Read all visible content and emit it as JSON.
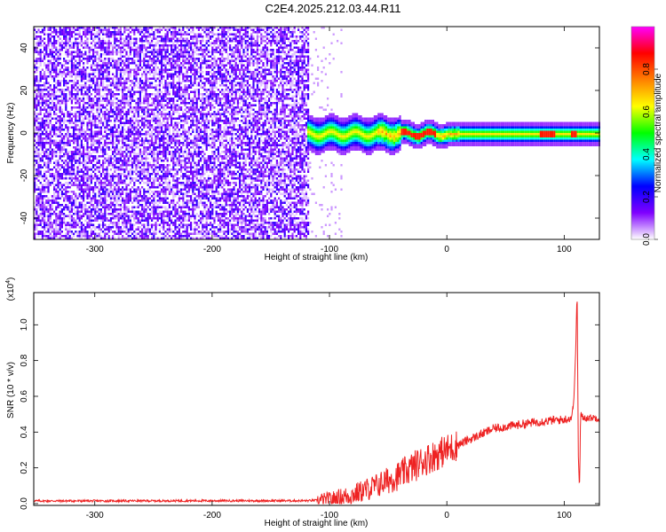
{
  "title": "C2E4.2025.212.03.44.R11",
  "chart_data": [
    {
      "type": "heatmap",
      "name": "spectrogram",
      "xlabel": "Height of straight line (km)",
      "ylabel": "Frequency (Hz)",
      "xlim": [
        -352,
        130
      ],
      "ylim": [
        -50,
        50
      ],
      "xticks": [
        -300,
        -200,
        -100,
        0,
        100
      ],
      "yticks": [
        -40,
        -20,
        0,
        20,
        40
      ],
      "colorbar": {
        "label": "Normalized spectral amplitude",
        "range": [
          0,
          1
        ],
        "ticks": [
          "0.0",
          "0.2",
          "0.4",
          "0.6",
          "0.8"
        ],
        "colors": [
          "#ffffff",
          "#7f00ff",
          "#0000ff",
          "#00ffff",
          "#00ff00",
          "#ffff00",
          "#ff8000",
          "#ff0000",
          "#ff00ff"
        ]
      },
      "features": {
        "noise_region_x": [
          -352,
          -118
        ],
        "noise_amplitude": 0.15,
        "sparse_region_x": [
          -118,
          -90
        ],
        "signal_start_x": -120,
        "signal_center_freq_hz": 0,
        "signal_band_halfwidth_hz": 5
      }
    },
    {
      "type": "line",
      "name": "snr",
      "xlabel": "Height of straight line (km)",
      "ylabel": "SNR (10 * v/v)",
      "y_multiplier": "(x10",
      "y_multiplier_exp": "4",
      "xlim": [
        -352,
        130
      ],
      "ylim": [
        -0.01,
        1.18
      ],
      "xticks": [
        -300,
        -200,
        -100,
        0,
        100
      ],
      "yticks": [
        "0.0",
        "0.2",
        "0.4",
        "0.6",
        "0.8",
        "1.0"
      ],
      "color": "#ee2222",
      "series_points": [
        [
          -352,
          0.015
        ],
        [
          -300,
          0.015
        ],
        [
          -200,
          0.016
        ],
        [
          -120,
          0.016
        ],
        [
          -100,
          0.02
        ],
        [
          -80,
          0.05
        ],
        [
          -60,
          0.1
        ],
        [
          -40,
          0.16
        ],
        [
          -20,
          0.24
        ],
        [
          0,
          0.3
        ],
        [
          20,
          0.36
        ],
        [
          40,
          0.42
        ],
        [
          60,
          0.44
        ],
        [
          80,
          0.46
        ],
        [
          100,
          0.47
        ],
        [
          106,
          0.48
        ],
        [
          108,
          0.55
        ],
        [
          110,
          0.9
        ],
        [
          111,
          1.2
        ],
        [
          112,
          0.3
        ],
        [
          113,
          0.06
        ],
        [
          114,
          0.5
        ],
        [
          116,
          0.48
        ],
        [
          130,
          0.48
        ]
      ]
    }
  ]
}
